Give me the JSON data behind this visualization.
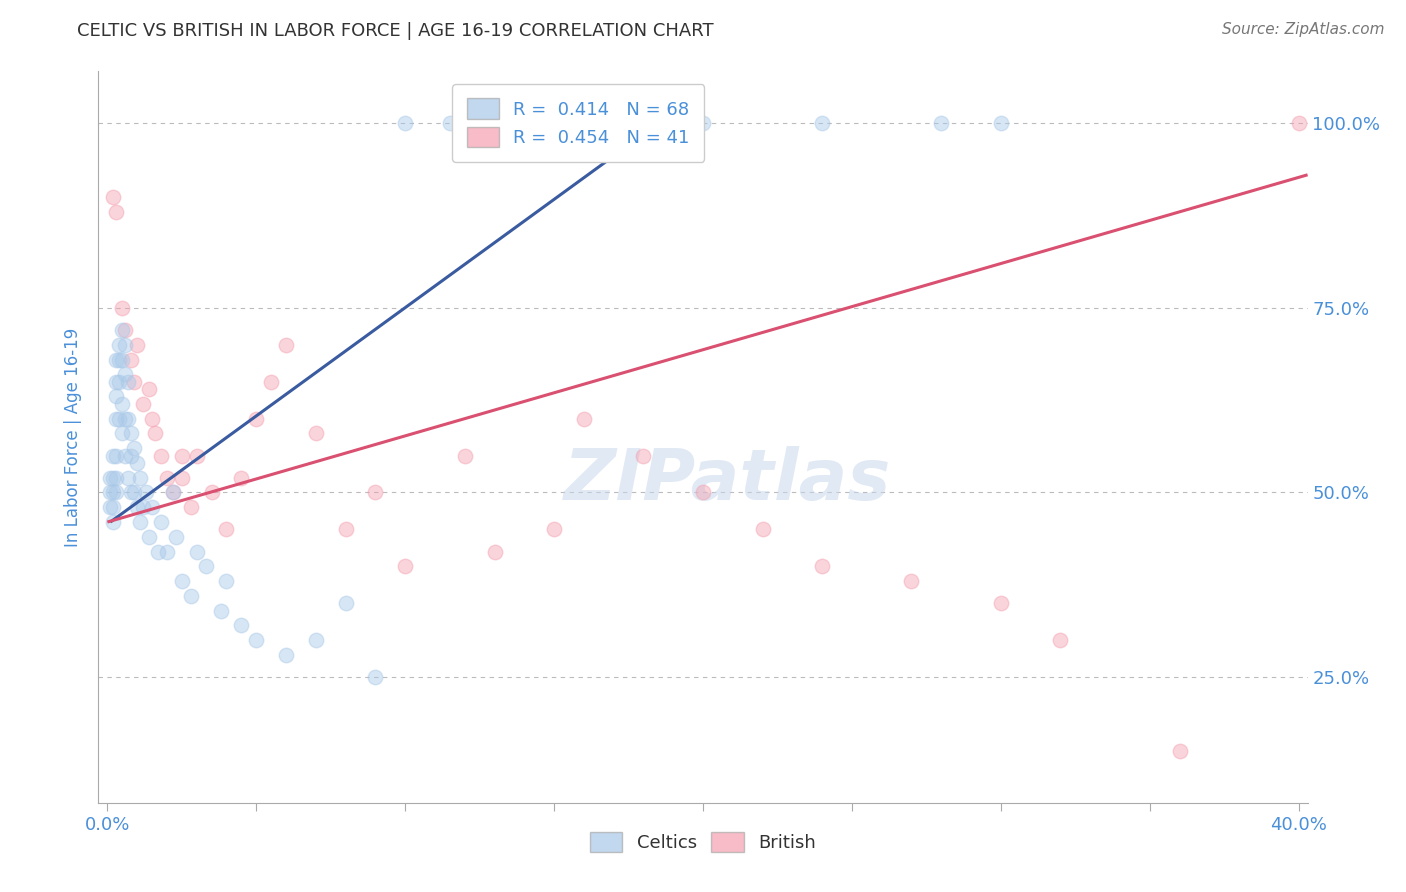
{
  "title": "CELTIC VS BRITISH IN LABOR FORCE | AGE 16-19 CORRELATION CHART",
  "ylabel": "In Labor Force | Age 16-19",
  "source_text": "Source: ZipAtlas.com",
  "celtics_R": 0.414,
  "celtics_N": 68,
  "british_R": 0.454,
  "british_N": 41,
  "xlim": [
    -0.003,
    0.403
  ],
  "ylim": [
    0.08,
    1.07
  ],
  "xtick_positions": [
    0.0,
    0.05,
    0.1,
    0.15,
    0.2,
    0.25,
    0.3,
    0.35,
    0.4
  ],
  "xtick_labels_sparse": {
    "0.0": "0.0%",
    "0.40": "40.0%"
  },
  "ytick_vals_right": [
    0.25,
    0.5,
    0.75,
    1.0
  ],
  "ytick_labels_right": [
    "25.0%",
    "50.0%",
    "75.0%",
    "100.0%"
  ],
  "grid_vals": [
    0.25,
    0.5,
    0.75,
    1.0
  ],
  "celtics_color": "#A8C8E8",
  "british_color": "#F4A0B0",
  "celtics_line_color": "#3A5BA0",
  "british_line_color": "#D95070",
  "background_color": "#FFFFFF",
  "title_color": "#333333",
  "axis_label_color": "#4A90D9",
  "tick_label_color": "#4A90D9",
  "celtics_x": [
    0.001,
    0.001,
    0.001,
    0.002,
    0.002,
    0.002,
    0.002,
    0.002,
    0.003,
    0.003,
    0.003,
    0.003,
    0.003,
    0.003,
    0.003,
    0.004,
    0.004,
    0.004,
    0.004,
    0.005,
    0.005,
    0.005,
    0.005,
    0.006,
    0.006,
    0.006,
    0.006,
    0.007,
    0.007,
    0.007,
    0.008,
    0.008,
    0.008,
    0.009,
    0.009,
    0.01,
    0.01,
    0.011,
    0.011,
    0.012,
    0.013,
    0.014,
    0.015,
    0.017,
    0.018,
    0.02,
    0.022,
    0.023,
    0.025,
    0.028,
    0.03,
    0.033,
    0.038,
    0.04,
    0.045,
    0.05,
    0.06,
    0.07,
    0.08,
    0.09,
    0.1,
    0.115,
    0.13,
    0.17,
    0.2,
    0.24,
    0.28,
    0.3
  ],
  "celtics_y": [
    0.52,
    0.5,
    0.48,
    0.55,
    0.52,
    0.5,
    0.48,
    0.46,
    0.68,
    0.65,
    0.63,
    0.6,
    0.55,
    0.52,
    0.5,
    0.7,
    0.68,
    0.65,
    0.6,
    0.72,
    0.68,
    0.62,
    0.58,
    0.7,
    0.66,
    0.6,
    0.55,
    0.65,
    0.6,
    0.52,
    0.58,
    0.55,
    0.5,
    0.56,
    0.5,
    0.54,
    0.48,
    0.52,
    0.46,
    0.48,
    0.5,
    0.44,
    0.48,
    0.42,
    0.46,
    0.42,
    0.5,
    0.44,
    0.38,
    0.36,
    0.42,
    0.4,
    0.34,
    0.38,
    0.32,
    0.3,
    0.28,
    0.3,
    0.35,
    0.25,
    1.0,
    1.0,
    1.0,
    1.0,
    1.0,
    1.0,
    1.0,
    1.0
  ],
  "british_x": [
    0.002,
    0.003,
    0.005,
    0.006,
    0.008,
    0.009,
    0.01,
    0.012,
    0.014,
    0.015,
    0.016,
    0.018,
    0.02,
    0.022,
    0.025,
    0.025,
    0.028,
    0.03,
    0.035,
    0.04,
    0.045,
    0.05,
    0.055,
    0.06,
    0.07,
    0.08,
    0.09,
    0.1,
    0.12,
    0.13,
    0.15,
    0.16,
    0.18,
    0.2,
    0.22,
    0.24,
    0.27,
    0.3,
    0.32,
    0.36,
    0.4
  ],
  "british_y": [
    0.9,
    0.88,
    0.75,
    0.72,
    0.68,
    0.65,
    0.7,
    0.62,
    0.64,
    0.6,
    0.58,
    0.55,
    0.52,
    0.5,
    0.55,
    0.52,
    0.48,
    0.55,
    0.5,
    0.45,
    0.52,
    0.6,
    0.65,
    0.7,
    0.58,
    0.45,
    0.5,
    0.4,
    0.55,
    0.42,
    0.45,
    0.6,
    0.55,
    0.5,
    0.45,
    0.4,
    0.38,
    0.35,
    0.3,
    0.15,
    1.0
  ],
  "celtics_line_x0": 0.001,
  "celtics_line_y0": 0.46,
  "celtics_line_x1": 0.175,
  "celtics_line_y1": 0.97,
  "british_line_x0": 0.0,
  "british_line_y0": 0.46,
  "british_line_x1": 0.403,
  "british_line_y1": 0.93,
  "marker_size": 110,
  "marker_alpha": 0.45,
  "line_width": 2.2
}
